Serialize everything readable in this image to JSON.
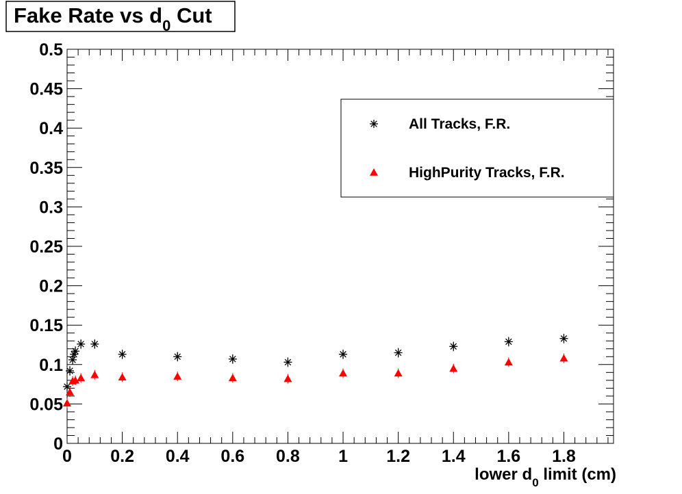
{
  "chart_data": {
    "type": "scatter",
    "title": "Fake Rate vs d",
    "title_subscript": "0",
    "title_suffix": " Cut",
    "xlabel": "lower d",
    "xlabel_subscript": "0",
    "xlabel_suffix": " limit (cm)",
    "ylabel": "",
    "xlim": [
      0,
      1.98
    ],
    "ylim": [
      0,
      0.5
    ],
    "x_tick_labels": [
      "0",
      "0.2",
      "0.4",
      "0.6",
      "0.8",
      "1",
      "1.2",
      "1.4",
      "1.6",
      "1.8"
    ],
    "x_ticks": [
      0,
      0.2,
      0.4,
      0.6,
      0.8,
      1.0,
      1.2,
      1.4,
      1.6,
      1.8
    ],
    "y_tick_labels": [
      "0",
      "0.05",
      "0.1",
      "0.15",
      "0.2",
      "0.25",
      "0.3",
      "0.35",
      "0.4",
      "0.45",
      "0.5"
    ],
    "y_ticks": [
      0,
      0.05,
      0.1,
      0.15,
      0.2,
      0.25,
      0.3,
      0.35,
      0.4,
      0.45,
      0.5
    ],
    "grid": false,
    "legend_position": "top-right",
    "series": [
      {
        "name": "All Tracks, F.R.",
        "marker": "asterisk",
        "color": "#000000",
        "x": [
          0,
          0.01,
          0.02,
          0.025,
          0.03,
          0.05,
          0.1,
          0.2,
          0.4,
          0.6,
          0.8,
          1.0,
          1.2,
          1.4,
          1.6,
          1.8
        ],
        "y": [
          0.072,
          0.092,
          0.106,
          0.113,
          0.117,
          0.126,
          0.126,
          0.113,
          0.11,
          0.107,
          0.103,
          0.113,
          0.115,
          0.123,
          0.129,
          0.133
        ]
      },
      {
        "name": "HighPurity Tracks, F.R.",
        "marker": "triangle",
        "color": "#ff0000",
        "x": [
          0,
          0.01,
          0.02,
          0.03,
          0.05,
          0.1,
          0.2,
          0.4,
          0.6,
          0.8,
          1.0,
          1.2,
          1.4,
          1.6,
          1.8
        ],
        "y": [
          0.051,
          0.065,
          0.079,
          0.08,
          0.083,
          0.087,
          0.084,
          0.085,
          0.083,
          0.082,
          0.089,
          0.089,
          0.095,
          0.103,
          0.108
        ]
      }
    ]
  }
}
